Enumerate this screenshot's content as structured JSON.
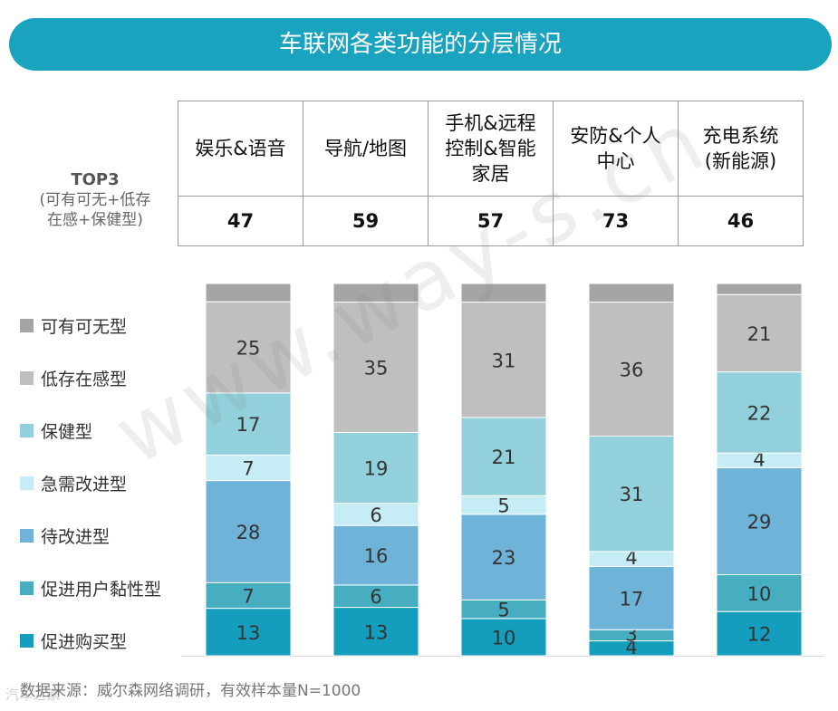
{
  "title": "车联网各类功能的分层情况",
  "top3": {
    "label_main": "TOP3",
    "label_line1": "(可有可无+低存",
    "label_line2": "在感+保健型)",
    "headers": [
      [
        "娱乐&语音"
      ],
      [
        "导航/地图"
      ],
      [
        "手机&远程",
        "控制&智能",
        "家居"
      ],
      [
        "安防&个人",
        "中心"
      ],
      [
        "充电系统",
        "(新能源)"
      ]
    ],
    "values": [
      "47",
      "59",
      "57",
      "73",
      "46"
    ]
  },
  "legend": [
    {
      "label": "可有可无型",
      "color": "#a5a5a5"
    },
    {
      "label": "低存在感型",
      "color": "#bfbfbf"
    },
    {
      "label": "保健型",
      "color": "#92d1db"
    },
    {
      "label": "急需改进型",
      "color": "#c6ecf6"
    },
    {
      "label": "待改进型",
      "color": "#6fb3d9"
    },
    {
      "label": "促进用户黏性型",
      "color": "#47adc0"
    },
    {
      "label": "促进购买型",
      "color": "#159dbd"
    }
  ],
  "chart_data": {
    "type": "bar",
    "stacked": true,
    "ylim": [
      0,
      100
    ],
    "categories": [
      "娱乐&语音",
      "导航/地图",
      "手机&远程控制&智能家居",
      "安防&个人中心",
      "充电系统(新能源)"
    ],
    "series": [
      {
        "name": "促进购买型",
        "color": "#159dbd",
        "values": [
          13,
          13,
          10,
          4,
          12
        ]
      },
      {
        "name": "促进用户黏性型",
        "color": "#47adc0",
        "values": [
          7,
          6,
          5,
          3,
          10
        ]
      },
      {
        "name": "待改进型",
        "color": "#6fb3d9",
        "values": [
          28,
          16,
          23,
          17,
          29
        ]
      },
      {
        "name": "急需改进型",
        "color": "#c6ecf6",
        "values": [
          7,
          6,
          5,
          4,
          4
        ]
      },
      {
        "name": "保健型",
        "color": "#92d1db",
        "values": [
          17,
          19,
          21,
          31,
          22
        ]
      },
      {
        "name": "低存在感型",
        "color": "#bfbfbf",
        "values": [
          25,
          35,
          31,
          36,
          21
        ]
      },
      {
        "name": "可有可无型",
        "color": "#a5a5a5",
        "values": [
          5,
          5,
          5,
          5,
          3
        ]
      }
    ],
    "labeled_series": [
      "促进购买型",
      "促进用户黏性型",
      "待改进型",
      "急需改进型",
      "保健型",
      "低存在感型"
    ]
  },
  "source": "数据来源：威尔森网络调研，有效样本量N=1000",
  "watermark": "www.way-s.cn",
  "watermark_small": "汽车之家"
}
